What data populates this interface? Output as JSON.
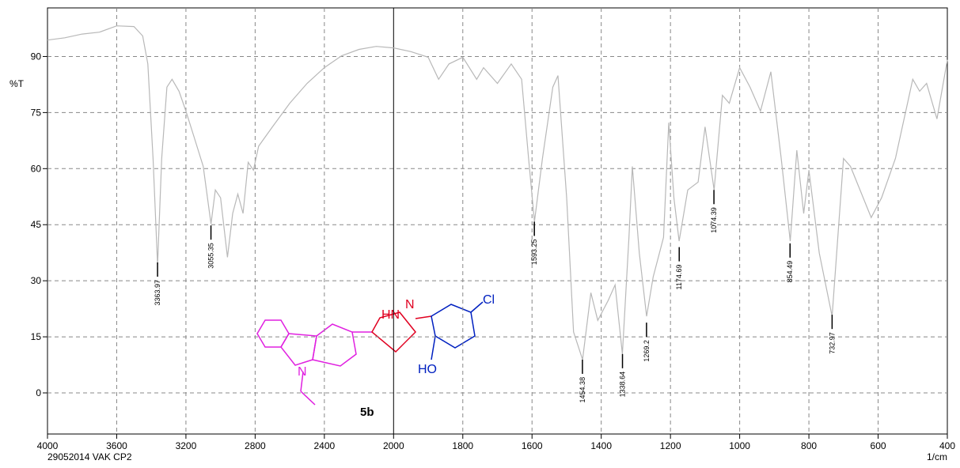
{
  "chart_data": {
    "type": "line",
    "ylabel": "%T",
    "xlabel": "1/cm",
    "footer": "29052014  VAK CP2",
    "xlim": [
      4000,
      400
    ],
    "xticks": [
      4000,
      3600,
      3200,
      2800,
      2400,
      2000,
      1800,
      1600,
      1400,
      1200,
      1000,
      800,
      600,
      400
    ],
    "ylim": [
      -11,
      103
    ],
    "yticks": [
      0,
      15,
      30,
      45,
      60,
      75,
      90
    ],
    "grid": true,
    "series": [
      {
        "color": "#b8b8b8",
        "x": [
          4000,
          3900,
          3800,
          3700,
          3600,
          3500,
          3450,
          3420,
          3390,
          3364,
          3340,
          3310,
          3280,
          3240,
          3200,
          3150,
          3100,
          3055,
          3030,
          3000,
          2960,
          2930,
          2900,
          2870,
          2840,
          2810,
          2780,
          2700,
          2600,
          2500,
          2400,
          2300,
          2200,
          2100,
          2000,
          1950,
          1900,
          1870,
          1840,
          1800,
          1760,
          1740,
          1700,
          1660,
          1630,
          1610,
          1593,
          1570,
          1540,
          1525,
          1500,
          1480,
          1454,
          1430,
          1410,
          1380,
          1360,
          1339,
          1320,
          1310,
          1290,
          1269,
          1250,
          1220,
          1205,
          1190,
          1175,
          1150,
          1120,
          1100,
          1074,
          1050,
          1030,
          1000,
          970,
          940,
          910,
          880,
          854,
          835,
          815,
          800,
          770,
          733,
          700,
          680,
          620,
          590,
          550,
          500,
          480,
          460,
          430,
          400
        ],
        "values": [
          94.4,
          95,
          96,
          96.5,
          98.2,
          98,
          95.5,
          88,
          62.7,
          34.2,
          62.7,
          81.8,
          83.9,
          80.7,
          75.4,
          68,
          60.6,
          45.2,
          54.3,
          52.2,
          36.3,
          48,
          53.2,
          48,
          61.7,
          59.6,
          66,
          71.2,
          77.5,
          82.8,
          87,
          90.2,
          91.9,
          92.7,
          92.3,
          91.3,
          89.8,
          83.9,
          88,
          89.8,
          83.9,
          87,
          82.8,
          88,
          83.9,
          62.7,
          45.8,
          62.7,
          81.8,
          84.9,
          52.2,
          16.3,
          8.9,
          26.8,
          19.4,
          24.7,
          28.9,
          10.4,
          41.6,
          60.6,
          37.4,
          20.5,
          31,
          41.6,
          72.3,
          52.2,
          40.6,
          54.3,
          56.4,
          71.2,
          54.3,
          79.6,
          77.5,
          87,
          81.8,
          75.4,
          85.9,
          62.7,
          40.6,
          64.9,
          48,
          59.6,
          37.4,
          20.5,
          62.7,
          60.6,
          46.9,
          52.2,
          62.7,
          83.9,
          80.7,
          82.8,
          73.3,
          89.1
        ]
      }
    ],
    "peaks": [
      {
        "x": 3363.97,
        "y": 34.9
      },
      {
        "x": 3055.35,
        "y": 44.8
      },
      {
        "x": 1593.25,
        "y": 45.8
      },
      {
        "x": 1454.38,
        "y": 8.9
      },
      {
        "x": 1338.64,
        "y": 10.4
      },
      {
        "x": 1269.2,
        "y": 18.8
      },
      {
        "x": 1174.69,
        "y": 39
      },
      {
        "x": 1074.39,
        "y": 54.3
      },
      {
        "x": 854.49,
        "y": 40
      },
      {
        "x": 732.97,
        "y": 20.9
      }
    ]
  },
  "molecule": {
    "label": "5b",
    "atoms": [
      "HN",
      "N",
      "Cl",
      "HO",
      "N"
    ]
  }
}
